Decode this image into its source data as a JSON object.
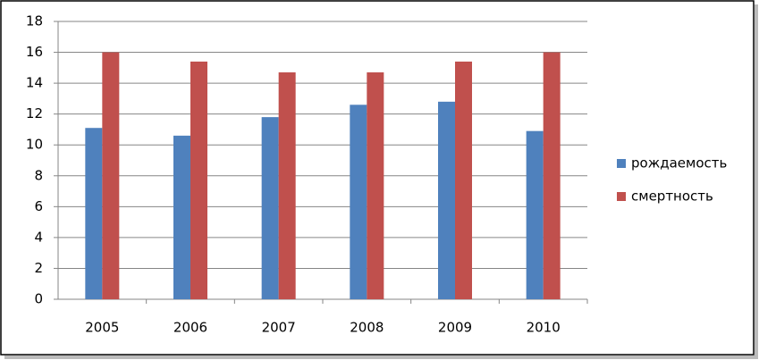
{
  "chart_data": {
    "type": "bar",
    "categories": [
      "2005",
      "2006",
      "2007",
      "2008",
      "2009",
      "2010"
    ],
    "series": [
      {
        "name": "рождаемость",
        "color": "#4f81bd",
        "values": [
          11.1,
          10.6,
          11.8,
          12.6,
          12.8,
          10.9
        ]
      },
      {
        "name": "смертность",
        "color": "#c0504d",
        "values": [
          16.0,
          15.4,
          14.7,
          14.7,
          15.4,
          16.0
        ]
      }
    ],
    "ylim": [
      0,
      18
    ],
    "yticks": [
      0,
      2,
      4,
      6,
      8,
      10,
      12,
      14,
      16,
      18
    ],
    "grid": true,
    "legend": "right"
  }
}
